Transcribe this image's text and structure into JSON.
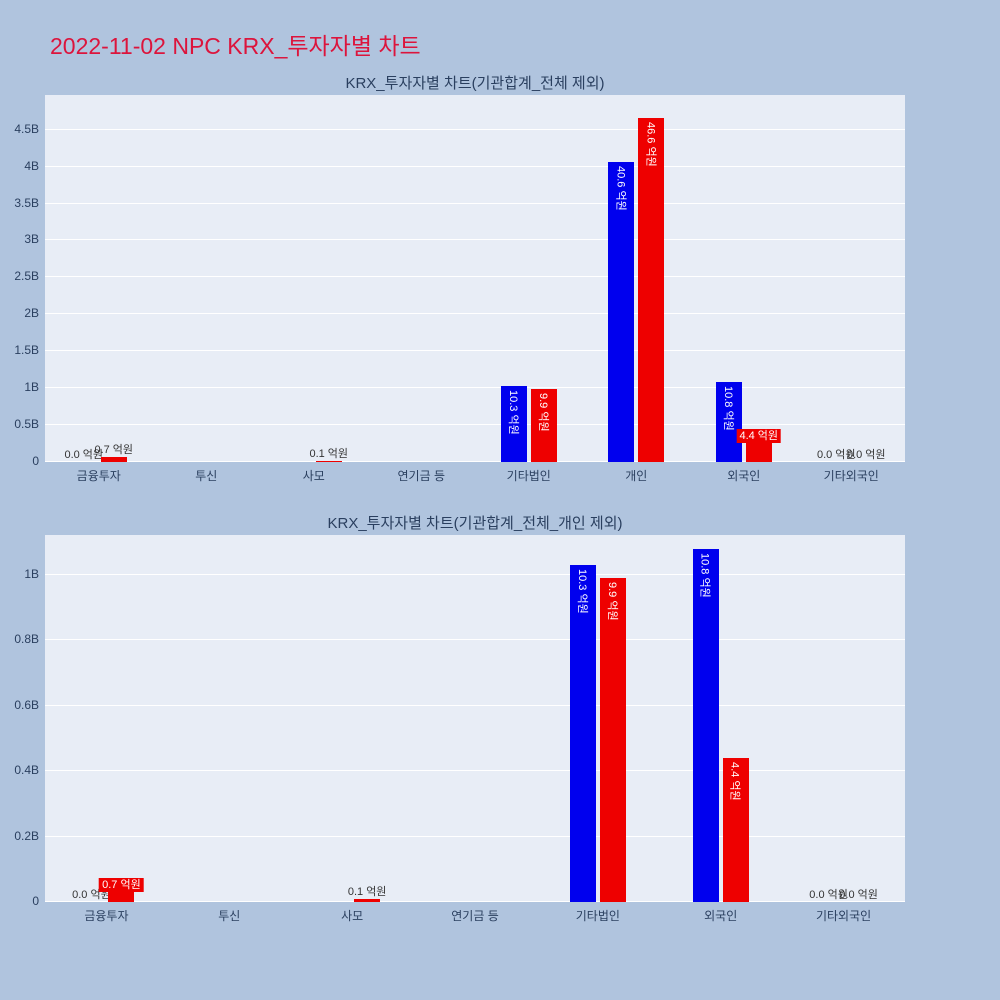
{
  "page": {
    "title": "2022-11-02 NPC KRX_투자자별 차트"
  },
  "colors": {
    "background": "#b0c4de",
    "plot_bg": "#e8edf6",
    "grid": "#ffffff",
    "series_blue": "#0000ee",
    "series_red": "#ee0000",
    "axis_text": "#2a3f5f",
    "outside_label": "#333333",
    "bar_label": "#ffffff",
    "title": "#dc143c"
  },
  "chart_data": [
    {
      "type": "bar",
      "title": "KRX_투자자별 차트(기관합계_전체 제외)",
      "unit": "억원",
      "legend": "none",
      "grid": true,
      "categories": [
        "금융투자",
        "투신",
        "사모",
        "연기금 등",
        "기타법인",
        "개인",
        "외국인",
        "기타외국인"
      ],
      "series": [
        {
          "name": "series-blue",
          "color_key": "series_blue",
          "values_eokwon": [
            0.0,
            null,
            null,
            null,
            10.3,
            40.6,
            10.8,
            0.0
          ],
          "labels": [
            "0.0 억원",
            "",
            "",
            "",
            "10.3 억원",
            "40.6 억원",
            "10.8 억원",
            "0.0 억원"
          ]
        },
        {
          "name": "series-red",
          "color_key": "series_red",
          "values_eokwon": [
            0.7,
            null,
            0.1,
            null,
            9.9,
            46.6,
            4.4,
            0.0
          ],
          "labels": [
            "0.7 억원",
            "",
            "0.1 억원",
            "",
            "9.9 억원",
            "46.6 억원",
            "4.4 억원",
            "0.0 억원"
          ]
        }
      ],
      "yaxis": {
        "ticks_B": [
          0,
          0.5,
          1,
          1.5,
          2,
          2.5,
          3,
          3.5,
          4,
          4.5
        ],
        "tick_labels": [
          "0",
          "0.5B",
          "1B",
          "1.5B",
          "2B",
          "2.5B",
          "3B",
          "3.5B",
          "4B",
          "4.5B"
        ],
        "max_B": 4.97
      }
    },
    {
      "type": "bar",
      "title": "KRX_투자자별 차트(기관합계_전체_개인 제외)",
      "unit": "억원",
      "legend": "none",
      "grid": true,
      "categories": [
        "금융투자",
        "투신",
        "사모",
        "연기금 등",
        "기타법인",
        "외국인",
        "기타외국인"
      ],
      "series": [
        {
          "name": "series-blue",
          "color_key": "series_blue",
          "values_eokwon": [
            0.0,
            null,
            null,
            null,
            10.3,
            10.8,
            0.0
          ],
          "labels": [
            "0.0 억원",
            "",
            "",
            "",
            "10.3 억원",
            "10.8 억원",
            "0.0 억원"
          ]
        },
        {
          "name": "series-red",
          "color_key": "series_red",
          "values_eokwon": [
            0.7,
            null,
            0.1,
            null,
            9.9,
            4.4,
            0.0
          ],
          "labels": [
            "0.7 억원",
            "",
            "0.1 억원",
            "",
            "9.9 억원",
            "4.4 억원",
            "0.0 억원"
          ]
        }
      ],
      "yaxis": {
        "ticks_B": [
          0,
          0.2,
          0.4,
          0.6,
          0.8,
          1
        ],
        "tick_labels": [
          "0",
          "0.2B",
          "0.4B",
          "0.6B",
          "0.8B",
          "1B"
        ],
        "max_B": 1.122
      }
    }
  ]
}
